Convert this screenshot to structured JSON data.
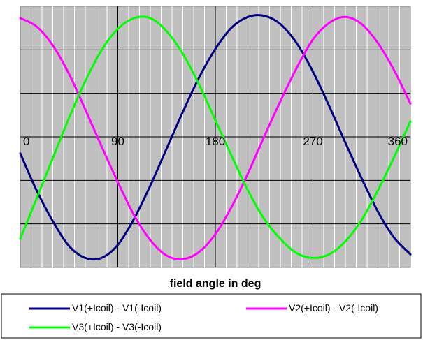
{
  "chart_data": {
    "type": "line",
    "xlabel": "field angle in deg",
    "ylabel": "",
    "xlim": [
      0,
      360
    ],
    "ylim": [
      -1.1,
      1.1
    ],
    "x_ticks": [
      0,
      90,
      180,
      270,
      360
    ],
    "x_tick_labels": [
      "0",
      "90",
      "180",
      "270",
      "360"
    ],
    "grid": true,
    "legend_position": "bottom",
    "background_color": "#c0c0c0",
    "x": [
      0,
      15,
      30,
      45,
      60,
      75,
      90,
      105,
      120,
      135,
      150,
      165,
      180,
      195,
      210,
      225,
      240,
      255,
      270,
      285,
      300,
      315,
      330,
      345,
      360
    ],
    "series": [
      {
        "name": "V1(+Icoil) - V1(-Icoil)",
        "color": "#000080",
        "values": [
          -0.14,
          -0.45,
          -0.71,
          -0.92,
          -1.02,
          -1.02,
          -0.91,
          -0.69,
          -0.41,
          -0.1,
          0.21,
          0.5,
          0.74,
          0.92,
          1.01,
          1.02,
          0.95,
          0.79,
          0.55,
          0.26,
          -0.05,
          -0.35,
          -0.63,
          -0.85,
          -0.99
        ]
      },
      {
        "name": "V2(+Icoil) - V2(-Icoil)",
        "color": "#ff00ff",
        "values": [
          1.0,
          0.93,
          0.77,
          0.53,
          0.23,
          -0.08,
          -0.38,
          -0.66,
          -0.87,
          -1.0,
          -1.03,
          -0.97,
          -0.82,
          -0.59,
          -0.31,
          0.0,
          0.3,
          0.58,
          0.82,
          0.96,
          1.01,
          0.95,
          0.79,
          0.56,
          0.28
        ]
      },
      {
        "name": "V3(+Icoil) - V3(-Icoil)",
        "color": "#00ff00",
        "values": [
          -0.86,
          -0.52,
          -0.18,
          0.16,
          0.47,
          0.73,
          0.91,
          1.0,
          1.0,
          0.89,
          0.7,
          0.44,
          0.14,
          -0.16,
          -0.45,
          -0.69,
          -0.86,
          -0.98,
          -1.02,
          -0.99,
          -0.88,
          -0.7,
          -0.45,
          -0.17,
          0.13
        ]
      }
    ]
  }
}
